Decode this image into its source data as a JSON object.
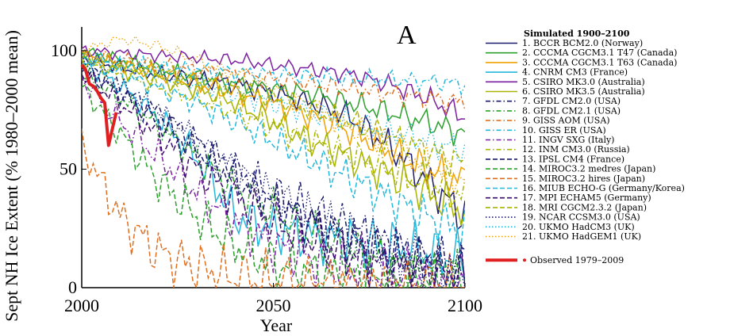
{
  "chart_data": {
    "type": "line",
    "title": "",
    "panel_label": "A",
    "xlabel": "Year",
    "ylabel": "Sept NH Ice Extent (% 1980–2000 mean)",
    "xlim": [
      2000,
      2100
    ],
    "ylim": [
      0,
      110
    ],
    "x_ticks": [
      2000,
      2050,
      2100
    ],
    "y_ticks": [
      0,
      50,
      100
    ],
    "grid": false,
    "legend_position": "right",
    "legend_title": "Simulated 1900–2100",
    "series": [
      {
        "name": "1. BCCR BCM2.0 (Norway)",
        "color": "#1a1a6e",
        "dash": "solid",
        "x": [
          2000,
          2010,
          2020,
          2030,
          2040,
          2050,
          2060,
          2070,
          2080,
          2090,
          2100
        ],
        "values": [
          97,
          93,
          90,
          88,
          86,
          82,
          78,
          72,
          60,
          45,
          30
        ]
      },
      {
        "name": "2. CCCMA CGCM3.1 T47 (Canada)",
        "color": "#2ca02c",
        "dash": "solid",
        "x": [
          2000,
          2010,
          2020,
          2030,
          2040,
          2050,
          2060,
          2070,
          2080,
          2090,
          2100
        ],
        "values": [
          100,
          96,
          92,
          89,
          86,
          84,
          82,
          78,
          74,
          70,
          65
        ]
      },
      {
        "name": "3. CCCMA CGCM3.1 T63 (Canada)",
        "color": "#f0a000",
        "dash": "solid",
        "x": [
          2000,
          2010,
          2020,
          2030,
          2040,
          2050,
          2060,
          2070,
          2080,
          2090,
          2100
        ],
        "values": [
          98,
          94,
          90,
          86,
          82,
          78,
          72,
          66,
          58,
          50,
          45
        ]
      },
      {
        "name": "4. CNRM CM3 (France)",
        "color": "#22b8dc",
        "dash": "solid",
        "x": [
          2000,
          2010,
          2020,
          2030,
          2040,
          2050,
          2060,
          2070,
          2080,
          2090,
          2100
        ],
        "values": [
          95,
          85,
          72,
          55,
          30,
          25,
          22,
          20,
          18,
          15,
          12
        ]
      },
      {
        "name": "5. CSIRO MK3.0 (Australia)",
        "color": "#7b1fa2",
        "dash": "solid",
        "x": [
          2000,
          2010,
          2020,
          2030,
          2040,
          2050,
          2060,
          2070,
          2080,
          2090,
          2100
        ],
        "values": [
          100,
          99,
          98,
          97,
          96,
          94,
          92,
          90,
          86,
          80,
          72
        ]
      },
      {
        "name": "6. CSIRO MK3.5 (Australia)",
        "color": "#a8b400",
        "dash": "solid",
        "x": [
          2000,
          2010,
          2020,
          2030,
          2040,
          2050,
          2060,
          2070,
          2080,
          2090,
          2100
        ],
        "values": [
          96,
          92,
          88,
          84,
          78,
          70,
          62,
          55,
          48,
          40,
          32
        ]
      },
      {
        "name": "7. GFDL CM2.0 (USA)",
        "color": "#1a1a6e",
        "dash": "dashdot",
        "x": [
          2000,
          2010,
          2020,
          2030,
          2040,
          2050,
          2060,
          2070,
          2080,
          2090,
          2100
        ],
        "values": [
          93,
          84,
          74,
          62,
          50,
          40,
          32,
          25,
          18,
          12,
          8
        ]
      },
      {
        "name": "8. GFDL CM2.1 (USA)",
        "color": "#2ca02c",
        "dash": "dashdot",
        "x": [
          2000,
          2010,
          2020,
          2030,
          2040,
          2050,
          2060,
          2070,
          2080,
          2090,
          2100
        ],
        "values": [
          90,
          80,
          68,
          55,
          42,
          32,
          22,
          15,
          10,
          6,
          4
        ]
      },
      {
        "name": "9. GISS AOM (USA)",
        "color": "#e07020",
        "dash": "dashdot",
        "x": [
          2000,
          2010,
          2020,
          2030,
          2040,
          2050,
          2060,
          2070,
          2080,
          2090,
          2100
        ],
        "values": [
          98,
          96,
          94,
          92,
          90,
          88,
          86,
          84,
          82,
          80,
          78
        ]
      },
      {
        "name": "10. GISS ER (USA)",
        "color": "#22b8dc",
        "dash": "dashdot",
        "x": [
          2000,
          2010,
          2020,
          2030,
          2040,
          2050,
          2060,
          2070,
          2080,
          2090,
          2100
        ],
        "values": [
          97,
          95,
          93,
          92,
          91,
          90,
          89,
          88,
          88,
          87,
          86
        ]
      },
      {
        "name": "11. INGV SXG (Italy)",
        "color": "#7b1fa2",
        "dash": "dashdot",
        "x": [
          2000,
          2010,
          2020,
          2030,
          2040,
          2050,
          2060,
          2070,
          2080,
          2090,
          2100
        ],
        "values": [
          88,
          70,
          55,
          40,
          28,
          18,
          12,
          8,
          5,
          3,
          2
        ]
      },
      {
        "name": "12. INM CM3.0 (Russia)",
        "color": "#a8b400",
        "dash": "dashdot",
        "x": [
          2000,
          2010,
          2020,
          2030,
          2040,
          2050,
          2060,
          2070,
          2080,
          2090,
          2100
        ],
        "values": [
          95,
          90,
          85,
          80,
          74,
          68,
          62,
          56,
          50,
          44,
          38
        ]
      },
      {
        "name": "13. IPSL CM4 (France)",
        "color": "#1a1a6e",
        "dash": "dashed",
        "x": [
          2000,
          2010,
          2020,
          2030,
          2040,
          2050,
          2060,
          2070,
          2080,
          2090,
          2100
        ],
        "values": [
          92,
          82,
          70,
          58,
          46,
          36,
          28,
          20,
          14,
          9,
          6
        ]
      },
      {
        "name": "14. MIROC3.2 medres (Japan)",
        "color": "#2ca02c",
        "dash": "dashed",
        "x": [
          2000,
          2010,
          2020,
          2030,
          2040,
          2050,
          2060,
          2070,
          2080,
          2090,
          2100
        ],
        "values": [
          85,
          65,
          45,
          30,
          18,
          10,
          6,
          4,
          2,
          1,
          1
        ]
      },
      {
        "name": "15. MIROC3.2 hires (Japan)",
        "color": "#e07020",
        "dash": "dashed",
        "x": [
          2000,
          2010,
          2020,
          2030,
          2040,
          2050,
          2060,
          2070,
          2080,
          2090,
          2100
        ],
        "values": [
          60,
          30,
          15,
          8,
          4,
          2,
          1,
          1,
          0,
          0,
          0
        ]
      },
      {
        "name": "16. MIUB ECHO-G (Germany/Korea)",
        "color": "#22b8dc",
        "dash": "dashed",
        "x": [
          2000,
          2010,
          2020,
          2030,
          2040,
          2050,
          2060,
          2070,
          2080,
          2090,
          2100
        ],
        "values": [
          96,
          90,
          84,
          78,
          70,
          62,
          54,
          46,
          38,
          30,
          24
        ]
      },
      {
        "name": "17. MPI ECHAM5 (Germany)",
        "color": "#3a0a6e",
        "dash": "dashed",
        "x": [
          2000,
          2010,
          2020,
          2030,
          2040,
          2050,
          2060,
          2070,
          2080,
          2090,
          2100
        ],
        "values": [
          90,
          78,
          64,
          50,
          38,
          28,
          20,
          14,
          9,
          6,
          4
        ]
      },
      {
        "name": "18. MRI CGCM2.3.2 (Japan)",
        "color": "#a8b400",
        "dash": "dashed",
        "x": [
          2000,
          2010,
          2020,
          2030,
          2040,
          2050,
          2060,
          2070,
          2080,
          2090,
          2100
        ],
        "values": [
          98,
          95,
          92,
          88,
          84,
          80,
          75,
          70,
          64,
          58,
          52
        ]
      },
      {
        "name": "19. NCAR CCSM3.0 (USA)",
        "color": "#1a1a6e",
        "dash": "dotted",
        "x": [
          2000,
          2010,
          2020,
          2030,
          2040,
          2050,
          2060,
          2070,
          2080,
          2090,
          2100
        ],
        "values": [
          95,
          85,
          74,
          62,
          50,
          40,
          30,
          22,
          15,
          10,
          6
        ]
      },
      {
        "name": "20. UKMO HadCM3 (UK)",
        "color": "#22b8dc",
        "dash": "dotted",
        "x": [
          2000,
          2010,
          2020,
          2030,
          2040,
          2050,
          2060,
          2070,
          2080,
          2090,
          2100
        ],
        "values": [
          98,
          94,
          90,
          86,
          82,
          78,
          74,
          70,
          66,
          62,
          58
        ]
      },
      {
        "name": "21. UKMO HadGEM1 (UK)",
        "color": "#f0a000",
        "dash": "dotted",
        "x": [
          2000,
          2010,
          2020,
          2030,
          2040,
          2050,
          2060,
          2070,
          2080,
          2090,
          2100
        ],
        "values": [
          100,
          105,
          102,
          96,
          90,
          84,
          76,
          68,
          60,
          52,
          45
        ]
      }
    ],
    "observed": {
      "name": "Observed 1979–2009",
      "color": "#e02020",
      "x": [
        2000,
        2001,
        2002,
        2003,
        2004,
        2005,
        2006,
        2007,
        2008,
        2009
      ],
      "values": [
        94,
        92,
        86,
        85,
        83,
        80,
        78,
        60,
        67,
        74
      ]
    }
  }
}
